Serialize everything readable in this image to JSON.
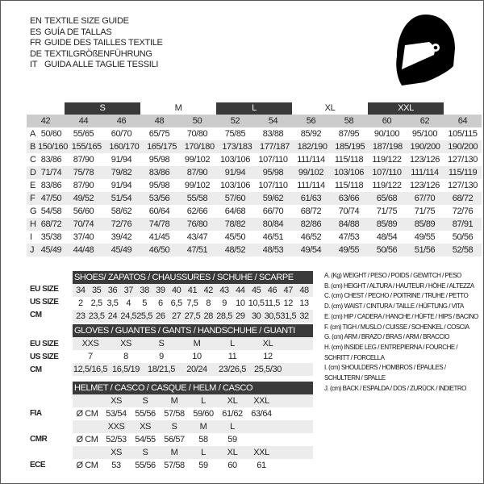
{
  "titles": [
    {
      "code": "EN",
      "text": "TEXTILE SIZE GUIDE"
    },
    {
      "code": "ES",
      "text": "GUÍA DE TALLAS"
    },
    {
      "code": "FR",
      "text": "GUIDE DES TAILLES TEXTILE"
    },
    {
      "code": "DE",
      "text": "TEXTILGRÖßENFÜHRUNG"
    },
    {
      "code": "IT",
      "text": "GUIDA ALLE TAGLIE TESSILI"
    }
  ],
  "icon": "helmet-icon",
  "textile": {
    "sizes": [
      "S",
      "M",
      "L",
      "XL",
      "XXL"
    ],
    "numbers": [
      "42",
      "44",
      "46",
      "48",
      "50",
      "52",
      "54",
      "56",
      "58",
      "60",
      "62",
      "64"
    ],
    "rows": [
      {
        "letter": "A",
        "values": [
          "50/60",
          "55/65",
          "60/70",
          "65/75",
          "70/80",
          "75/85",
          "83/88",
          "85/92",
          "87/95",
          "90/100",
          "95/100",
          "105/115"
        ]
      },
      {
        "letter": "B",
        "values": [
          "150/160",
          "155/165",
          "160/170",
          "165/175",
          "170/180",
          "173/183",
          "177/187",
          "182/190",
          "185/195",
          "187/198",
          "190/200",
          "190/200"
        ]
      },
      {
        "letter": "C",
        "values": [
          "83/86",
          "87/90",
          "91/94",
          "95/98",
          "99/102",
          "103/106",
          "107/110",
          "111/114",
          "115/118",
          "119/122",
          "123/126",
          "127/130"
        ]
      },
      {
        "letter": "D",
        "values": [
          "71/74",
          "75/78",
          "79/82",
          "83/86",
          "87/90",
          "91/94",
          "95/98",
          "99/102",
          "103/106",
          "107/110",
          "111/114",
          "115/119"
        ]
      },
      {
        "letter": "E",
        "values": [
          "83/86",
          "87/90",
          "91/94",
          "95/98",
          "99/102",
          "103/106",
          "107/110",
          "111/114",
          "115/118",
          "119/122",
          "123/126",
          "127/130"
        ]
      },
      {
        "letter": "F",
        "values": [
          "47/50",
          "49/52",
          "51/54",
          "53/56",
          "55/58",
          "57/60",
          "59/62",
          "61/63",
          "63/66",
          "65/68",
          "67/70",
          "68/72"
        ]
      },
      {
        "letter": "G",
        "values": [
          "54/58",
          "56/60",
          "58/62",
          "60/64",
          "62/66",
          "64/68",
          "66/70",
          "68/72",
          "70/74",
          "71/75",
          "71/75",
          "72/76"
        ]
      },
      {
        "letter": "H",
        "values": [
          "68/72",
          "70/74",
          "72/76",
          "74/78",
          "76/80",
          "78/82",
          "80/84",
          "82/86",
          "84/88",
          "85/89",
          "85/89",
          "87/91"
        ]
      },
      {
        "letter": "I",
        "values": [
          "35/38",
          "37/40",
          "39/42",
          "41/45",
          "43/47",
          "45/50",
          "46/51",
          "46/52",
          "47/53",
          "48/54",
          "49/55",
          "50/56"
        ]
      },
      {
        "letter": "J",
        "values": [
          "45/49",
          "44/48",
          "45/49",
          "46/50",
          "47/51",
          "48/52",
          "48/53",
          "49/54",
          "49/55",
          "50/56",
          "51/56",
          "52/58"
        ]
      }
    ]
  },
  "shoes": {
    "title": "SHOES/ ZAPATOS / CHAUSSURES / SCHUHE / SCARPE",
    "rows": [
      {
        "label": "EU SIZE",
        "values": [
          "34",
          "35",
          "36",
          "37",
          "38",
          "39",
          "40",
          "41",
          "42",
          "43",
          "44",
          "45",
          "46",
          "47",
          "48"
        ]
      },
      {
        "label": "US SIZE",
        "values": [
          "2",
          "2,5",
          "3,5",
          "4",
          "5",
          "6",
          "6,5",
          "7,5",
          "8",
          "9",
          "10",
          "10,5",
          "11,5",
          "12",
          "13"
        ]
      },
      {
        "label": "CM",
        "values": [
          "23",
          "23,5",
          "24",
          "24,5",
          "25,5",
          "26",
          "27",
          "27,5",
          "28",
          "28,5",
          "29",
          "30",
          "30,5",
          "31,5",
          "32"
        ]
      }
    ]
  },
  "gloves": {
    "title": "GLOVES / GUANTES / GANTS / HANDSCHUHE / GUANTI",
    "rows": [
      {
        "label": "EU SIZE",
        "values": [
          "XXS",
          "XS",
          "S",
          "M",
          "L",
          "XL"
        ]
      },
      {
        "label": "US SIZE",
        "values": [
          "7",
          "8",
          "9",
          "10",
          "11",
          "12"
        ]
      },
      {
        "label": "CM",
        "values": [
          "12,5/16,5",
          "16,5/19",
          "18/21,5",
          "20/24",
          "23/26,5",
          "25,5/30"
        ]
      }
    ]
  },
  "helmet": {
    "title": "HELMET / CASCO / CASQUE / HELM / CASCO",
    "unit": "Ø CM",
    "rows": [
      {
        "label": "FIA",
        "sizes": [
          "XS",
          "S",
          "M",
          "L",
          "XL",
          "XXL"
        ],
        "values": [
          "53/54",
          "55/56",
          "57/58",
          "59/60",
          "61/62",
          "63/64"
        ]
      },
      {
        "label": "CMR",
        "sizes": [
          "XXS",
          "XS",
          "S",
          "M",
          "L"
        ],
        "values": [
          "52/53",
          "54/55",
          "56/57",
          "58",
          "59"
        ]
      },
      {
        "label": "ECE",
        "sizes": [
          "XS",
          "S",
          "M",
          "L",
          "XL",
          "XXL"
        ],
        "values": [
          "53",
          "55/56",
          "57/58",
          "59",
          "60",
          "61"
        ]
      }
    ]
  },
  "legend": [
    "A. (Kg) WEIGHT / PESO / POIDS / GEWITCH / PESO",
    "B. (cm) HEIGHT / ALTURA / HAUTEUR / HÖHE / ALTEZZA",
    "C. (cm) CHEST / PECHO / POITRINE / TRUHE / PETTO",
    "D. (cm) WAIST / CINTURA / TAILLE / HÜFTUNG / VITA",
    "E. (cm) HIP / CADERA / HANCHE / HÜFTE / HIPS /  BACINO",
    "F.  (cm) TIGH / MUSLO / CUISSE / SCHENKEL / COSCIA",
    "G. (cm) ARM  / BRAZO / BRAS / ARM / BRACCIO",
    "H. (cm) INSIDE LEG / ENTREPIERNA / FOURCHE /",
    "SCHRITT / FORCELLA",
    "I.  (cm) SHOULDERS / HOMBROS / ÉPAULES /",
    "SCHULTERN / SPALLE",
    "J. (cm) BACK / ESPALDA / DOS / ZURÜCK / INDIETRO"
  ]
}
